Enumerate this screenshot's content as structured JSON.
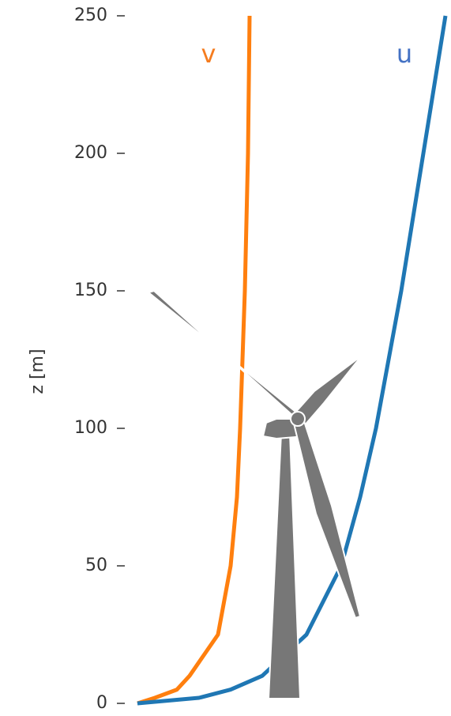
{
  "chart_data": {
    "type": "line",
    "y_label": "z [m]",
    "y": [
      0,
      2,
      5,
      10,
      25,
      50,
      75,
      100,
      150,
      200,
      250
    ],
    "series": [
      {
        "name": "v",
        "color": "#ff7f0e",
        "values": [
          0.5,
          6,
          13,
          17,
          26,
          30,
          32,
          33,
          34.5,
          35.5,
          36
        ]
      },
      {
        "name": "u",
        "color": "#1f77b4",
        "values": [
          0.5,
          20,
          30,
          40,
          54,
          65,
          71,
          76,
          84,
          91,
          98
        ]
      }
    ],
    "label_colors": [
      "#f57c1f",
      "#4472c4"
    ],
    "xlim": [
      0,
      100
    ],
    "ylim": [
      0,
      250
    ],
    "yticks": [
      0,
      50,
      100,
      150,
      200,
      250
    ],
    "grid": false
  }
}
